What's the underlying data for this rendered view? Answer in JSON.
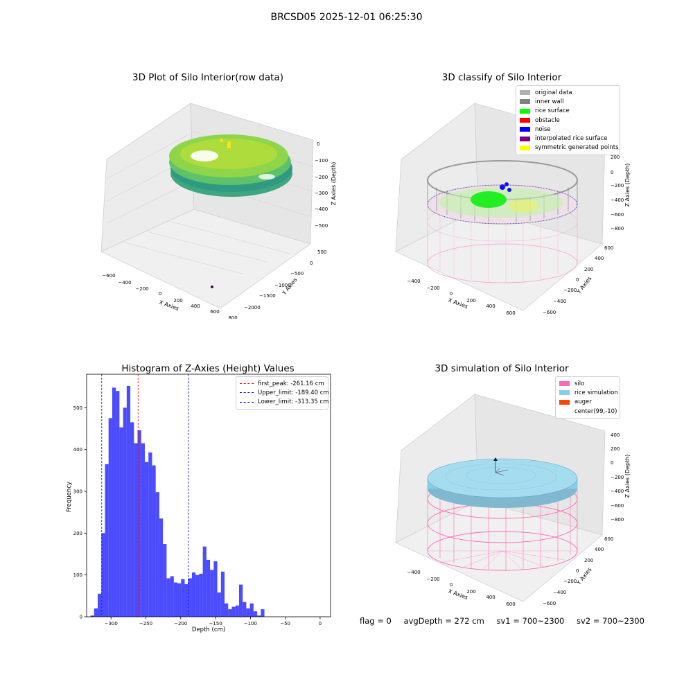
{
  "figure": {
    "title": "BRCSD05 2025-12-01 06:25:30"
  },
  "panels": {
    "raw": {
      "title": "3D Plot of Silo Interior(row data)",
      "x_label": "X Axies",
      "y_label": "Y Axies",
      "z_label": "Z Axies (Depth)",
      "x_ticks": [
        "−600",
        "−400",
        "−200",
        "0",
        "200",
        "400",
        "600",
        "800"
      ],
      "y_ticks": [
        "500",
        "0",
        "−500",
        "−1000",
        "−1500",
        "−2000"
      ],
      "z_ticks": [
        "0",
        "−100",
        "−200",
        "−300",
        "−400",
        "−500"
      ]
    },
    "classify": {
      "title": "3D classify of Silo Interior",
      "x_label": "X Axies",
      "y_label": "Y Axies",
      "z_label": "Z Axies (Depth)",
      "x_ticks": [
        "−400",
        "−200",
        "0",
        "200",
        "400",
        "600"
      ],
      "y_ticks": [
        "600",
        "400",
        "200",
        "0",
        "−200",
        "−400",
        "−600"
      ],
      "z_ticks": [
        "200",
        "0",
        "−200",
        "−400",
        "−600",
        "−800"
      ],
      "legend": [
        {
          "label": "original data",
          "color": "#b0b0b0"
        },
        {
          "label": "inner wall",
          "color": "#808080"
        },
        {
          "label": "rice surface",
          "color": "#00ff00"
        },
        {
          "label": "obstacle",
          "color": "#ff0000"
        },
        {
          "label": "noise",
          "color": "#0000ff"
        },
        {
          "label": "interpolated rice surface",
          "color": "#800080"
        },
        {
          "label": "symmetric generated points",
          "color": "#ffff00"
        }
      ]
    },
    "simulation": {
      "title": "3D simulation of Silo Interior",
      "x_label": "X Axies",
      "y_label": "Y Axies",
      "z_label": "Z Axies (Depth)",
      "x_ticks": [
        "−400",
        "−200",
        "0",
        "200",
        "400",
        "600"
      ],
      "y_ticks": [
        "600",
        "400",
        "200",
        "0",
        "−200",
        "−400",
        "−600"
      ],
      "z_ticks": [
        "400",
        "200",
        "0",
        "−200",
        "−400",
        "−600",
        "−800"
      ],
      "legend": [
        {
          "label": "silo",
          "color": "#ff69b4"
        },
        {
          "label": "rice simulation",
          "color": "#87ceeb"
        },
        {
          "label": "auger",
          "color": "#ff4500"
        },
        {
          "label": "center(99,-10)",
          "color": ""
        }
      ]
    }
  },
  "status": {
    "flag": "flag = 0",
    "avg_depth": "avgDepth = 272 cm",
    "sv1": "sv1 = 700~2300",
    "sv2": "sv2 = 700~2300"
  },
  "chart_data": [
    {
      "type": "bar",
      "title": "Histogram of Z-Axies (Height) Values",
      "xlabel": "Depth (cm)",
      "ylabel": "Frequency",
      "xlim": [
        -335,
        15
      ],
      "ylim": [
        0,
        580
      ],
      "bin_start": -329.5,
      "bin_width": 5.2,
      "values": [
        3,
        20,
        55,
        200,
        365,
        475,
        548,
        540,
        453,
        500,
        552,
        465,
        415,
        446,
        415,
        370,
        393,
        362,
        298,
        235,
        174,
        92,
        97,
        82,
        80,
        90,
        78,
        92,
        106,
        100,
        103,
        168,
        136,
        112,
        133,
        58,
        108,
        32,
        18,
        24,
        27,
        77,
        35,
        20,
        32,
        13,
        3,
        18
      ],
      "color": "#0000ff",
      "x_ticks": [
        -300,
        -250,
        -200,
        -150,
        -100,
        -50,
        0
      ],
      "x_tick_labels": [
        "−300",
        "−250",
        "−200",
        "−150",
        "−100",
        "−50",
        "0"
      ],
      "y_ticks": [
        0,
        100,
        200,
        300,
        400,
        500
      ],
      "y_tick_labels": [
        "0",
        "100",
        "200",
        "300",
        "400",
        "500"
      ],
      "vlines": [
        {
          "label": "first_peak: -261.16 cm",
          "value": -261.16,
          "color": "#ff0000"
        },
        {
          "label": "Upper_limit: -189.40 cm",
          "value": -189.4,
          "color": "#0000ff"
        },
        {
          "label": "Lower_limit: -313.35 cm",
          "value": -313.35,
          "color": "#0000ff"
        }
      ],
      "legend_position": "top-right"
    }
  ]
}
